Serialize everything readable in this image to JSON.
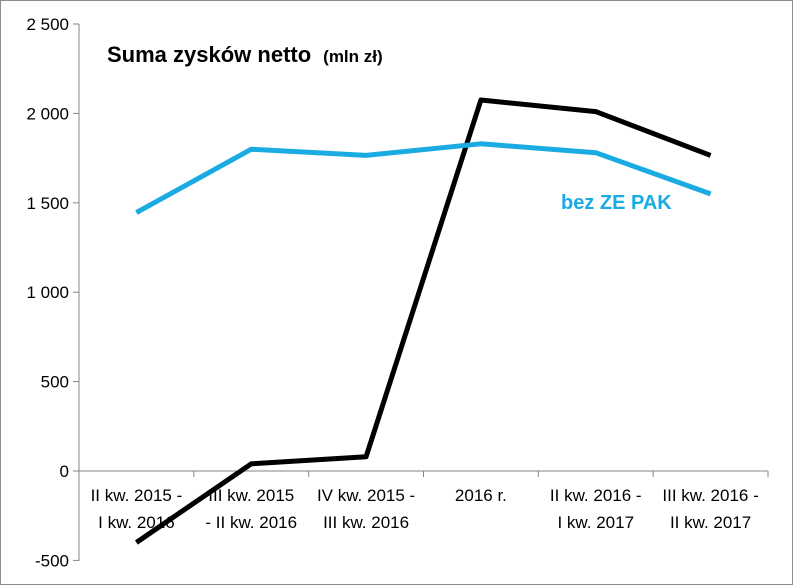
{
  "chart_data": {
    "type": "line",
    "title": "Suma zysków netto",
    "title_unit": "(mln zł)",
    "ylim": [
      -500,
      2500
    ],
    "y_ticks": [
      "2 500",
      "2 000",
      "1 500",
      "1 000",
      "500",
      "0",
      "-500"
    ],
    "y_tick_values": [
      2500,
      2000,
      1500,
      1000,
      500,
      0,
      -500
    ],
    "categories": [
      [
        "II kw. 2015 -",
        "I kw. 2016"
      ],
      [
        "III kw. 2015",
        "- II kw. 2016"
      ],
      [
        "IV kw. 2015 -",
        "III kw. 2016"
      ],
      [
        "2016 r.",
        ""
      ],
      [
        "II kw. 2016 -",
        "I kw. 2017"
      ],
      [
        "III kw. 2016 -",
        "II kw. 2017"
      ]
    ],
    "grid": false,
    "series": [
      {
        "name": "",
        "color": "#000000",
        "values": [
          -400,
          40,
          80,
          2075,
          2010,
          1765
        ]
      },
      {
        "name": "bez ZE PAK",
        "color": "#1aabe2",
        "values": [
          1445,
          1800,
          1765,
          1830,
          1780,
          1550
        ]
      }
    ]
  }
}
